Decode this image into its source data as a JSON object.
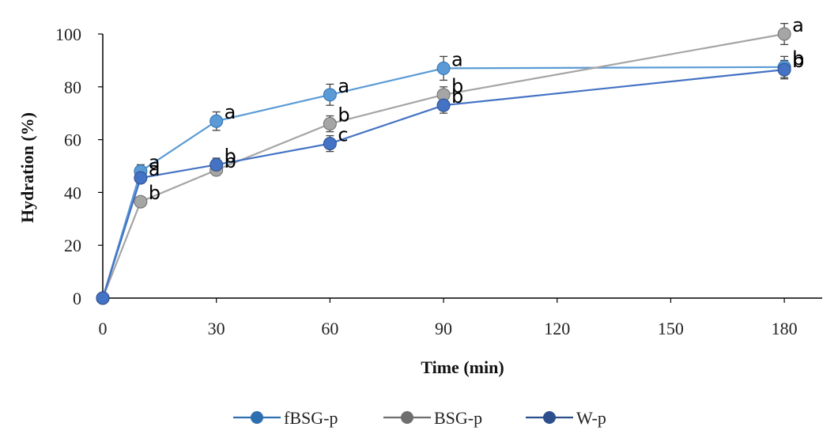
{
  "chart_data": {
    "type": "line",
    "title": "",
    "xlabel": "Time (min)",
    "ylabel": "Hydration (%)",
    "xlim": [
      0,
      190
    ],
    "ylim": [
      0,
      100
    ],
    "x_ticks": [
      0,
      30,
      60,
      90,
      120,
      150,
      180
    ],
    "y_ticks": [
      0,
      20,
      40,
      60,
      80,
      100
    ],
    "x_tick_labels": [
      "0",
      "30",
      "60",
      "90",
      "120",
      "150",
      "180"
    ],
    "y_tick_labels": [
      "0",
      "20",
      "40",
      "60",
      "80",
      "100"
    ],
    "grid": false,
    "legend_position": "bottom",
    "series": [
      {
        "name": "fBSG-p",
        "color": "#5b9bd5",
        "legend_color": "#2e6fb0",
        "x": [
          0,
          10,
          30,
          60,
          90,
          180
        ],
        "values": [
          0,
          48,
          67,
          77,
          87,
          87.5
        ],
        "errors": [
          0,
          2.5,
          3.5,
          4,
          4.5,
          4
        ],
        "labels": [
          "",
          "a",
          "a",
          "a",
          "a",
          "b"
        ]
      },
      {
        "name": "BSG-p",
        "color": "#a5a5a5",
        "legend_color": "#6e6e6e",
        "x": [
          0,
          10,
          30,
          60,
          90,
          180
        ],
        "values": [
          0,
          36.5,
          48.5,
          66,
          77,
          100
        ],
        "errors": [
          0,
          1.5,
          2,
          3,
          3,
          4
        ],
        "labels": [
          "",
          "b",
          "b",
          "b",
          "b",
          "a"
        ]
      },
      {
        "name": "W-p",
        "color": "#4472c4",
        "legend_color": "#2d4f8c",
        "x": [
          0,
          10,
          30,
          60,
          90,
          180
        ],
        "values": [
          0,
          45.5,
          50.5,
          58.5,
          73,
          86.5
        ],
        "errors": [
          0,
          2,
          2.5,
          3,
          3,
          3.5
        ],
        "labels": [
          "",
          "a",
          "b",
          "c",
          "b",
          "b"
        ]
      }
    ]
  }
}
